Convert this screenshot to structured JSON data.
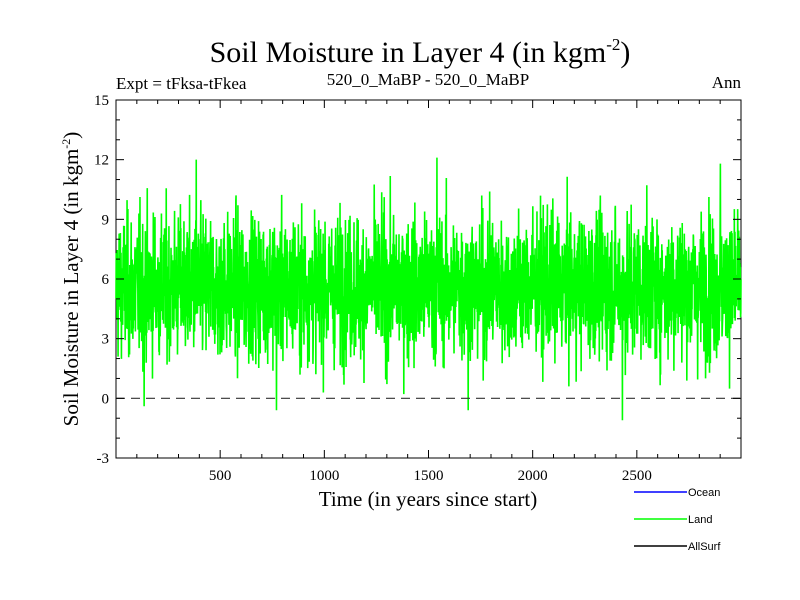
{
  "chart_data": {
    "type": "line",
    "title": "Soil Moisture in Layer 4 (in kgm",
    "title_sup": "-2",
    "title_close": ")",
    "subtitle_left": "Expt = tFksa-tFkea",
    "subtitle_center": "520_0_MaBP - 520_0_MaBP",
    "subtitle_right": "Ann",
    "xlabel": "Time (in years since start)",
    "ylabel": "Soil Moisture in Layer 4 (in kgm",
    "ylabel_sup": "-2",
    "ylabel_close": ")",
    "xlim": [
      0,
      3000
    ],
    "ylim": [
      -3,
      15
    ],
    "x_ticks": [
      500,
      1000,
      1500,
      2000,
      2500
    ],
    "x_tick_labels": [
      "500",
      "1000",
      "1500",
      "2000",
      "2500"
    ],
    "y_ticks": [
      -3,
      0,
      3,
      6,
      9,
      12,
      15
    ],
    "y_tick_labels": [
      "-3",
      "0",
      "3",
      "6",
      "9",
      "12",
      "15"
    ],
    "zero_line": 0,
    "series_summary": {
      "name": "Land",
      "color": "#00ff00",
      "n_points": 3000,
      "mean": 5.6,
      "min": -1.1,
      "max": 12.1,
      "notable_peaks": [
        {
          "x": 385,
          "y": 12.0
        },
        {
          "x": 1540,
          "y": 12.1
        },
        {
          "x": 2900,
          "y": 11.8
        }
      ],
      "notable_troughs": [
        {
          "x": 135,
          "y": -0.4
        },
        {
          "x": 770,
          "y": -0.6
        },
        {
          "x": 1690,
          "y": -0.6
        },
        {
          "x": 2430,
          "y": -1.1
        }
      ]
    },
    "series": [
      {
        "name": "Ocean",
        "color": "#0000ff",
        "values": []
      },
      {
        "name": "Land",
        "color": "#00ff00",
        "values": "see series_summary"
      },
      {
        "name": "AllSurf",
        "color": "#000000",
        "values": []
      }
    ],
    "legend": [
      {
        "label": "Ocean",
        "color": "#0000ff"
      },
      {
        "label": "Land",
        "color": "#00ff00"
      },
      {
        "label": "AllSurf",
        "color": "#000000"
      }
    ]
  }
}
